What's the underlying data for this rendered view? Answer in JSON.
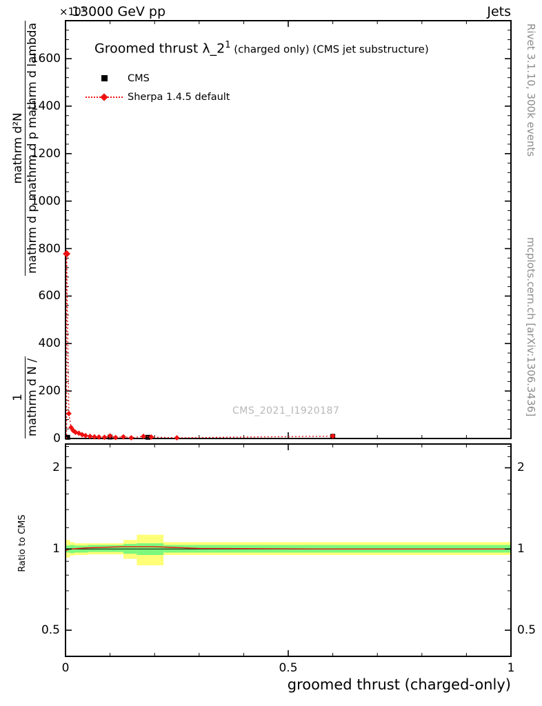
{
  "header": {
    "left": "13000 GeV pp",
    "right": "Jets"
  },
  "main_panel": {
    "title": "Groomed thrust λ_2",
    "title_sup": "1",
    "title_suffix": " (charged only) (CMS jet substructure)",
    "y_scale_label": "×10³",
    "watermark": "CMS_2021_I1920187",
    "ylabel": {
      "f1_num": "1",
      "f1_den": "mathrm d N /",
      "f2_num": "mathrm d²N",
      "f2_den": "mathrm d p mathrm d p mathrm d lambda"
    }
  },
  "legend": {
    "cms_label": "CMS",
    "sherpa_label": "Sherpa 1.4.5 default"
  },
  "ratio_panel": {
    "ylabel": "Ratio to CMS"
  },
  "xlabel": "groomed thrust (charged-only)",
  "side_notes": {
    "top": "Rivet 3.1.10,  300k events",
    "bottom": "mcplots.cern.ch [arXiv:1306.3436]"
  },
  "colors": {
    "mc": "#ee1111",
    "data": "#000000",
    "band_yellow": "#ffff78",
    "band_green": "#7df87d",
    "gray_text": "#8c8c8c"
  },
  "chart_data": [
    {
      "type": "line",
      "panel": "main",
      "title": "Groomed thrust λ_2¹ (charged only) (CMS jet substructure)",
      "xlabel": "groomed thrust (charged-only)",
      "ylabel": "1/(mathrm d N) · mathrm d²N / (mathrm d p mathrm d p mathrm d lambda)",
      "y_units": "×10³",
      "xlim": [
        0,
        1
      ],
      "ylim": [
        0,
        1760
      ],
      "xticks": [
        0,
        0.5,
        1
      ],
      "yticks": [
        0,
        200,
        400,
        600,
        800,
        1000,
        1200,
        1400,
        1600
      ],
      "x_minor_step": 0.1,
      "y_minor_step": 40,
      "grid": false,
      "legend_position": "top-left",
      "series": [
        {
          "name": "CMS",
          "marker": "square",
          "color": "#000000",
          "points": [
            [
              0.005,
              5
            ],
            [
              0.1,
              6
            ],
            [
              0.185,
              5
            ],
            [
              0.6,
              9
            ]
          ]
        },
        {
          "name": "Sherpa 1.4.5 default",
          "marker": "diamond",
          "color": "#ee1111",
          "line_style": "dotted",
          "points": [
            [
              0.0025,
              778
            ],
            [
              0.0075,
              105
            ],
            [
              0.0125,
              46
            ],
            [
              0.0175,
              33
            ],
            [
              0.0225,
              26
            ],
            [
              0.03,
              22
            ],
            [
              0.0375,
              16
            ],
            [
              0.045,
              12
            ],
            [
              0.055,
              9
            ],
            [
              0.065,
              7
            ],
            [
              0.075,
              6
            ],
            [
              0.0875,
              5
            ],
            [
              0.1,
              11
            ],
            [
              0.1125,
              4
            ],
            [
              0.13,
              7
            ],
            [
              0.1475,
              3
            ],
            [
              0.175,
              9
            ],
            [
              0.1925,
              6
            ],
            [
              0.25,
              3
            ],
            [
              0.6,
              10
            ]
          ]
        }
      ]
    },
    {
      "type": "ratio",
      "panel": "ratio",
      "ylabel": "Ratio to CMS",
      "yscale": "log",
      "xlim": [
        0,
        1
      ],
      "ylim": [
        0.4,
        2.45
      ],
      "xticks": [
        0,
        0.5,
        1
      ],
      "yticks": [
        0.5,
        1,
        2
      ],
      "y_minor_ticks": [
        0.6,
        0.7,
        0.8,
        0.9,
        1.2,
        1.4,
        1.6,
        1.8,
        2.2,
        2.4
      ],
      "x_minor_step": 0.1,
      "unity": 1,
      "bands": [
        {
          "x0": 0,
          "x1": 0.01,
          "yellow": [
            0.93,
            1.08
          ],
          "green": [
            0.97,
            1.03
          ]
        },
        {
          "x0": 0.01,
          "x1": 0.02,
          "yellow": [
            0.945,
            1.06
          ],
          "green": [
            0.965,
            1.035
          ]
        },
        {
          "x0": 0.02,
          "x1": 0.05,
          "yellow": [
            0.95,
            1.05
          ],
          "green": [
            0.97,
            1.03
          ]
        },
        {
          "x0": 0.05,
          "x1": 0.13,
          "yellow": [
            0.955,
            1.05
          ],
          "green": [
            0.975,
            1.035
          ]
        },
        {
          "x0": 0.13,
          "x1": 0.16,
          "yellow": [
            0.92,
            1.08
          ],
          "green": [
            0.96,
            1.045
          ]
        },
        {
          "x0": 0.16,
          "x1": 0.22,
          "yellow": [
            0.87,
            1.13
          ],
          "green": [
            0.95,
            1.05
          ]
        },
        {
          "x0": 0.22,
          "x1": 1,
          "yellow": [
            0.95,
            1.06
          ],
          "green": [
            0.97,
            1.035
          ]
        }
      ],
      "mc_ratio_line": {
        "color": "#ee1111",
        "points": [
          [
            0,
            0.985
          ],
          [
            0.01,
            1.0
          ],
          [
            0.05,
            1.01
          ],
          [
            0.13,
            1.02
          ],
          [
            0.2,
            1.02
          ],
          [
            0.3,
            1.005
          ],
          [
            0.6,
            1.0
          ],
          [
            1,
            1.0
          ]
        ]
      }
    }
  ]
}
